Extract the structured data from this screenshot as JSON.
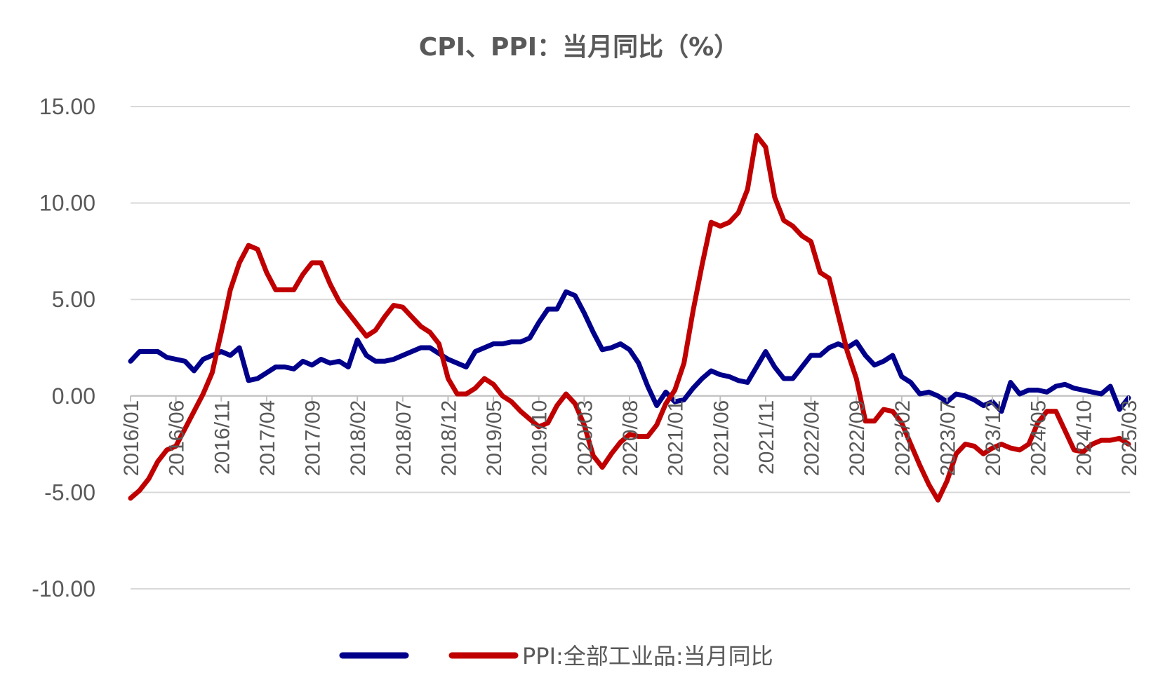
{
  "chart_data": {
    "type": "line",
    "title": "CPI、PPI：当月同比（%）",
    "ylim": [
      -10,
      15
    ],
    "y_ticks": [
      "15.00",
      "10.00",
      "5.00",
      "0.00",
      "-5.00",
      "-10.00"
    ],
    "y_tick_values": [
      15,
      10,
      5,
      0,
      -5,
      -10
    ],
    "grid": "horizontal",
    "legend": "bottom",
    "x_tick_labels": [
      "2016/01",
      "2016/06",
      "2016/11",
      "2017/04",
      "2017/09",
      "2018/02",
      "2018/07",
      "2018/12",
      "2019/05",
      "2019/10",
      "2020/03",
      "2020/08",
      "2021/01",
      "2021/06",
      "2021/11",
      "2022/04",
      "2022/09",
      "2023/02",
      "2023/07",
      "2023/12",
      "2024/05",
      "2024/10",
      "2025/03"
    ],
    "x": [
      "2016/01",
      "2016/02",
      "2016/03",
      "2016/04",
      "2016/05",
      "2016/06",
      "2016/07",
      "2016/08",
      "2016/09",
      "2016/10",
      "2016/11",
      "2016/12",
      "2017/01",
      "2017/02",
      "2017/03",
      "2017/04",
      "2017/05",
      "2017/06",
      "2017/07",
      "2017/08",
      "2017/09",
      "2017/10",
      "2017/11",
      "2017/12",
      "2018/01",
      "2018/02",
      "2018/03",
      "2018/04",
      "2018/05",
      "2018/06",
      "2018/07",
      "2018/08",
      "2018/09",
      "2018/10",
      "2018/11",
      "2018/12",
      "2019/01",
      "2019/02",
      "2019/03",
      "2019/04",
      "2019/05",
      "2019/06",
      "2019/07",
      "2019/08",
      "2019/09",
      "2019/10",
      "2019/11",
      "2019/12",
      "2020/01",
      "2020/02",
      "2020/03",
      "2020/04",
      "2020/05",
      "2020/06",
      "2020/07",
      "2020/08",
      "2020/09",
      "2020/10",
      "2020/11",
      "2020/12",
      "2021/01",
      "2021/02",
      "2021/03",
      "2021/04",
      "2021/05",
      "2021/06",
      "2021/07",
      "2021/08",
      "2021/09",
      "2021/10",
      "2021/11",
      "2021/12",
      "2022/01",
      "2022/02",
      "2022/03",
      "2022/04",
      "2022/05",
      "2022/06",
      "2022/07",
      "2022/08",
      "2022/09",
      "2022/10",
      "2022/11",
      "2022/12",
      "2023/01",
      "2023/02",
      "2023/03",
      "2023/04",
      "2023/05",
      "2023/06",
      "2023/07",
      "2023/08",
      "2023/09",
      "2023/10",
      "2023/11",
      "2023/12",
      "2024/01",
      "2024/02",
      "2024/03",
      "2024/04",
      "2024/05",
      "2024/06",
      "2024/07",
      "2024/08",
      "2024/09",
      "2024/10",
      "2024/11",
      "2024/12",
      "2025/01",
      "2025/02",
      "2025/03"
    ],
    "series": [
      {
        "name": "",
        "color": "#00008B",
        "values": [
          1.8,
          2.3,
          2.3,
          2.3,
          2.0,
          1.9,
          1.8,
          1.3,
          1.9,
          2.1,
          2.3,
          2.1,
          2.5,
          0.8,
          0.9,
          1.2,
          1.5,
          1.5,
          1.4,
          1.8,
          1.6,
          1.9,
          1.7,
          1.8,
          1.5,
          2.9,
          2.1,
          1.8,
          1.8,
          1.9,
          2.1,
          2.3,
          2.5,
          2.5,
          2.2,
          1.9,
          1.7,
          1.5,
          2.3,
          2.5,
          2.7,
          2.7,
          2.8,
          2.8,
          3.0,
          3.8,
          4.5,
          4.5,
          5.4,
          5.2,
          4.3,
          3.3,
          2.4,
          2.5,
          2.7,
          2.4,
          1.7,
          0.5,
          -0.5,
          0.2,
          -0.3,
          -0.2,
          0.4,
          0.9,
          1.3,
          1.1,
          1.0,
          0.8,
          0.7,
          1.5,
          2.3,
          1.5,
          0.9,
          0.9,
          1.5,
          2.1,
          2.1,
          2.5,
          2.7,
          2.5,
          2.8,
          2.1,
          1.6,
          1.8,
          2.1,
          1.0,
          0.7,
          0.1,
          0.2,
          0.0,
          -0.3,
          0.1,
          0.0,
          -0.2,
          -0.5,
          -0.3,
          -0.8,
          0.7,
          0.1,
          0.3,
          0.3,
          0.2,
          0.5,
          0.6,
          0.4,
          0.3,
          0.2,
          0.1,
          0.5,
          -0.7,
          -0.1
        ]
      },
      {
        "name": "PPI:全部工业品:当月同比",
        "color": "#C00000",
        "values": [
          -5.3,
          -4.9,
          -4.3,
          -3.4,
          -2.8,
          -2.6,
          -1.7,
          -0.8,
          0.1,
          1.2,
          3.3,
          5.5,
          6.9,
          7.8,
          7.6,
          6.4,
          5.5,
          5.5,
          5.5,
          6.3,
          6.9,
          6.9,
          5.8,
          4.9,
          4.3,
          3.7,
          3.1,
          3.4,
          4.1,
          4.7,
          4.6,
          4.1,
          3.6,
          3.3,
          2.7,
          0.9,
          0.1,
          0.1,
          0.4,
          0.9,
          0.6,
          0.0,
          -0.3,
          -0.8,
          -1.2,
          -1.6,
          -1.4,
          -0.5,
          0.1,
          -0.4,
          -1.5,
          -3.1,
          -3.7,
          -3.0,
          -2.4,
          -2.0,
          -2.1,
          -2.1,
          -1.5,
          -0.4,
          0.3,
          1.7,
          4.4,
          6.8,
          9.0,
          8.8,
          9.0,
          9.5,
          10.7,
          13.5,
          12.9,
          10.3,
          9.1,
          8.8,
          8.3,
          8.0,
          6.4,
          6.1,
          4.2,
          2.3,
          0.9,
          -1.3,
          -1.3,
          -0.7,
          -0.8,
          -1.4,
          -2.5,
          -3.6,
          -4.6,
          -5.4,
          -4.4,
          -3.0,
          -2.5,
          -2.6,
          -3.0,
          -2.7,
          -2.5,
          -2.7,
          -2.8,
          -2.5,
          -1.4,
          -0.8,
          -0.8,
          -1.8,
          -2.8,
          -2.9,
          -2.5,
          -2.3,
          -2.3,
          -2.2,
          -2.5
        ]
      }
    ]
  }
}
